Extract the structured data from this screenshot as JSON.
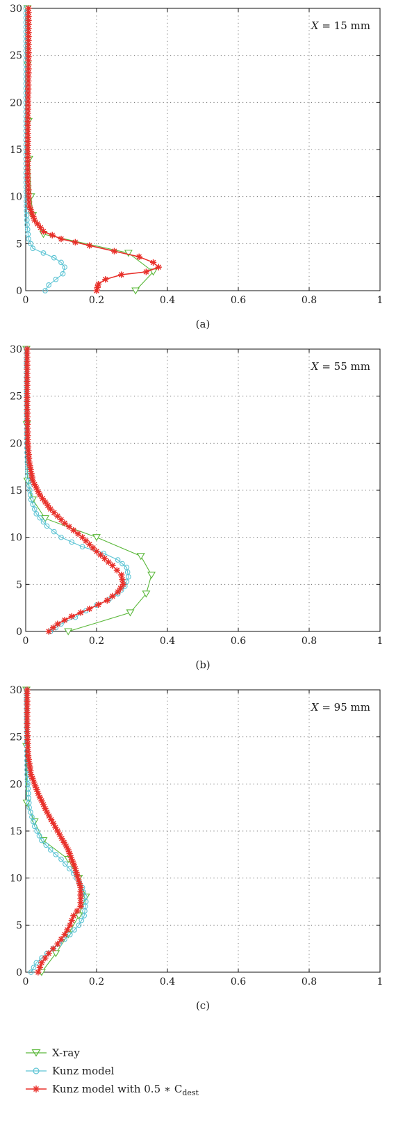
{
  "figure": {
    "legend": {
      "entries": [
        {
          "label": "X-ray",
          "color": "#5ab83a",
          "marker": "triangle-down"
        },
        {
          "label": "Kunz model",
          "color": "#5cc4d4",
          "marker": "circle"
        },
        {
          "label_main": "Kunz model with 0.5 ∗ C",
          "label_sub": "dest",
          "color": "#e8302a",
          "marker": "asterisk"
        }
      ]
    }
  },
  "chart_data": [
    {
      "type": "line",
      "panel_label": "(a)",
      "annotation_var": "X",
      "annotation_value": " = 15 mm",
      "xlim": [
        0,
        1
      ],
      "ylim": [
        0,
        30
      ],
      "x_ticks": [
        "0",
        "0.2",
        "0.4",
        "0.6",
        "0.8",
        "1"
      ],
      "y_ticks": [
        "0",
        "5",
        "10",
        "15",
        "20",
        "25",
        "30"
      ],
      "grid": true,
      "series": [
        {
          "name": "X-ray",
          "color": "#5ab83a",
          "marker": "triangle-down",
          "x": [
            0.31,
            0.36,
            0.29,
            0.05,
            0.02,
            0.015,
            0.01,
            0.008,
            0.005,
            0.005
          ],
          "y": [
            0,
            2,
            4,
            6,
            8,
            10,
            14,
            18,
            24,
            30
          ]
        },
        {
          "name": "Kunz model",
          "color": "#5cc4d4",
          "marker": "circle",
          "x": [
            0.055,
            0.065,
            0.085,
            0.105,
            0.11,
            0.1,
            0.08,
            0.05,
            0.02,
            0.008,
            0.004,
            0.002,
            0.001,
            0.001,
            0.001,
            0.001
          ],
          "y": [
            0,
            0.6,
            1.2,
            1.8,
            2.5,
            3.0,
            3.5,
            4.0,
            4.5,
            5.5,
            7,
            9,
            12,
            18,
            24,
            30
          ]
        },
        {
          "name": "Kunz model with 0.5 * C_dest",
          "color": "#e8302a",
          "marker": "asterisk",
          "x": [
            0.2,
            0.205,
            0.225,
            0.27,
            0.34,
            0.375,
            0.36,
            0.32,
            0.25,
            0.18,
            0.1,
            0.05,
            0.025,
            0.01,
            0.006,
            0.006,
            0.008,
            0.008
          ],
          "y": [
            0,
            0.7,
            1.2,
            1.7,
            2.0,
            2.5,
            3.0,
            3.6,
            4.2,
            4.8,
            5.5,
            6.3,
            7.5,
            9,
            12,
            18,
            24,
            30
          ]
        }
      ]
    },
    {
      "type": "line",
      "panel_label": "(b)",
      "annotation_var": "X",
      "annotation_value": " = 55 mm",
      "xlim": [
        0,
        1
      ],
      "ylim": [
        0,
        30
      ],
      "x_ticks": [
        "0",
        "0.2",
        "0.4",
        "0.6",
        "0.8",
        "1"
      ],
      "y_ticks": [
        "0",
        "5",
        "10",
        "15",
        "20",
        "25",
        "30"
      ],
      "grid": true,
      "series": [
        {
          "name": "X-ray",
          "color": "#5ab83a",
          "marker": "triangle-down",
          "x": [
            0.12,
            0.295,
            0.34,
            0.355,
            0.325,
            0.2,
            0.055,
            0.02,
            0.005,
            0.003,
            0.002
          ],
          "y": [
            0,
            2,
            4,
            6,
            8,
            10,
            12,
            14,
            16,
            22,
            30
          ]
        },
        {
          "name": "Kunz model",
          "color": "#5cc4d4",
          "marker": "circle",
          "x": [
            0.07,
            0.1,
            0.14,
            0.17,
            0.2,
            0.235,
            0.26,
            0.28,
            0.29,
            0.285,
            0.26,
            0.22,
            0.16,
            0.1,
            0.06,
            0.03,
            0.015,
            0.006,
            0.003,
            0.002
          ],
          "y": [
            0,
            0.8,
            1.5,
            2.2,
            2.8,
            3.4,
            4.0,
            4.8,
            5.8,
            6.8,
            7.6,
            8.3,
            9.0,
            10.0,
            11.2,
            12.5,
            14.0,
            16.5,
            20,
            30
          ]
        },
        {
          "name": "Kunz model with 0.5 * C_dest",
          "color": "#e8302a",
          "marker": "asterisk",
          "x": [
            0.065,
            0.09,
            0.13,
            0.18,
            0.23,
            0.26,
            0.275,
            0.27,
            0.245,
            0.2,
            0.16,
            0.11,
            0.07,
            0.04,
            0.02,
            0.01,
            0.006,
            0.004,
            0.004
          ],
          "y": [
            0,
            0.8,
            1.6,
            2.4,
            3.3,
            4.2,
            5.0,
            6.0,
            7.0,
            8.5,
            10.0,
            11.5,
            13.0,
            14.5,
            16.0,
            18.0,
            20.0,
            24,
            30
          ]
        }
      ]
    },
    {
      "type": "line",
      "panel_label": "(c)",
      "annotation_var": "X",
      "annotation_value": " = 95 mm",
      "xlim": [
        0,
        1
      ],
      "ylim": [
        0,
        30
      ],
      "x_ticks": [
        "0",
        "0.2",
        "0.4",
        "0.6",
        "0.8",
        "1"
      ],
      "y_ticks": [
        "0",
        "5",
        "10",
        "15",
        "20",
        "25",
        "30"
      ],
      "grid": true,
      "series": [
        {
          "name": "X-ray",
          "color": "#5ab83a",
          "marker": "triangle-down",
          "x": [
            0.045,
            0.085,
            0.12,
            0.15,
            0.17,
            0.15,
            0.12,
            0.05,
            0.025,
            0.003,
            0.002,
            0.002
          ],
          "y": [
            0,
            2,
            4,
            6,
            8,
            10,
            12,
            14,
            16,
            18,
            24,
            30
          ]
        },
        {
          "name": "Kunz model",
          "color": "#5cc4d4",
          "marker": "circle",
          "x": [
            0.015,
            0.03,
            0.06,
            0.095,
            0.125,
            0.15,
            0.165,
            0.17,
            0.16,
            0.135,
            0.1,
            0.07,
            0.045,
            0.025,
            0.01,
            0.004,
            0.002
          ],
          "y": [
            0,
            1,
            2,
            3,
            4,
            5,
            6,
            7.5,
            9,
            10.5,
            12,
            13,
            14,
            15.5,
            17.5,
            21,
            30
          ]
        },
        {
          "name": "Kunz model with 0.5 * C_dest",
          "color": "#e8302a",
          "marker": "asterisk",
          "x": [
            0.035,
            0.045,
            0.065,
            0.09,
            0.11,
            0.125,
            0.135,
            0.155,
            0.155,
            0.14,
            0.12,
            0.09,
            0.06,
            0.035,
            0.015,
            0.007,
            0.004,
            0.004
          ],
          "y": [
            0,
            1,
            2,
            3,
            4,
            5,
            6,
            7,
            9,
            11,
            13,
            15,
            17,
            19,
            21,
            23,
            26,
            30
          ]
        }
      ]
    }
  ]
}
